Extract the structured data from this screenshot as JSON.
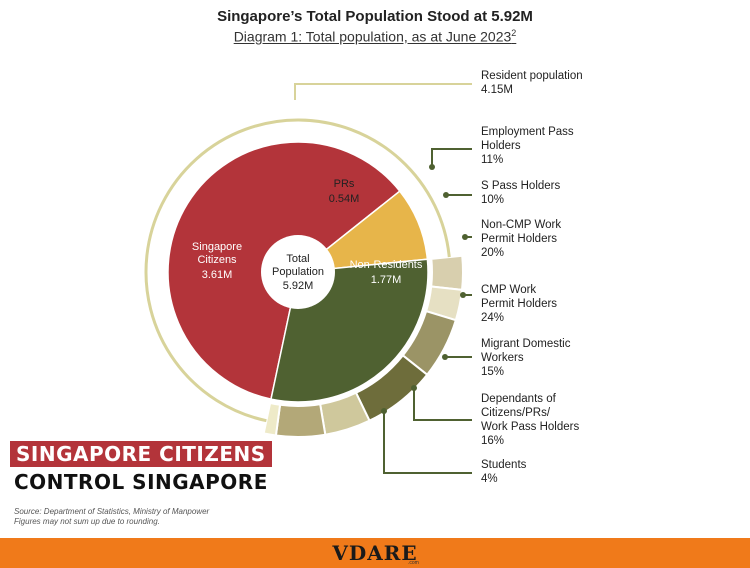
{
  "header": {
    "title": "Singapore’s Total Population Stood at 5.92M",
    "subtitle": "Diagram 1: Total population, as at June 2023",
    "subtitle_footnote": "2"
  },
  "chart_data": {
    "type": "pie",
    "title": "Singapore’s Total Population Stood at 5.92M",
    "subtitle": "Diagram 1: Total population, as at June 2023",
    "center": {
      "label_line1": "Total",
      "label_line2": "Population",
      "value_label": "5.92M",
      "value": 5.92
    },
    "slices": [
      {
        "name_lines": [
          "Singapore",
          "Citizens"
        ],
        "value_label": "3.61M",
        "value": 3.61,
        "color": "#b3343a"
      },
      {
        "name_lines": [
          "PRs"
        ],
        "value_label": "0.54M",
        "value": 0.54,
        "color": "#e7b54a"
      },
      {
        "name_lines": [
          "Non-Residents"
        ],
        "value_label": "1.77M",
        "value": 1.77,
        "color": "#4f6131"
      }
    ],
    "resident_ring": {
      "name": "Resident population",
      "value_label": "4.15M",
      "value": 4.15,
      "color": "#d8d39a"
    },
    "non_resident_breakdown": [
      {
        "name": "Employment Pass Holders",
        "value_label": "11%",
        "value": 11,
        "color": "#d8cfae"
      },
      {
        "name": "S Pass Holders",
        "value_label": "10%",
        "value": 10,
        "color": "#e6e0c3"
      },
      {
        "name": "Non-CMP Work Permit Holders",
        "value_label": "20%",
        "value": 20,
        "color": "#9b9466"
      },
      {
        "name": "CMP Work Permit Holders",
        "value_label": "24%",
        "value": 24,
        "color": "#6e6d3b"
      },
      {
        "name": "Migrant Domestic Workers",
        "value_label": "15%",
        "value": 15,
        "color": "#cfc89c"
      },
      {
        "name": "Dependants of Citizens/PRs/ Work Pass Holders",
        "value_label": "16%",
        "value": 16,
        "color": "#b3a878"
      },
      {
        "name": "Students",
        "value_label": "4%",
        "value": 4,
        "color": "#eeeac8"
      }
    ],
    "callouts": [
      {
        "lines": [
          "Resident population"
        ],
        "value_label": "4.15M"
      },
      {
        "lines": [
          "Employment Pass",
          "Holders"
        ],
        "value_label": "11%"
      },
      {
        "lines": [
          "S Pass Holders"
        ],
        "value_label": "10%"
      },
      {
        "lines": [
          "Non-CMP Work",
          "Permit Holders"
        ],
        "value_label": "20%"
      },
      {
        "lines": [
          "CMP Work",
          "Permit Holders"
        ],
        "value_label": "24%"
      },
      {
        "lines": [
          "Migrant Domestic",
          "Workers"
        ],
        "value_label": "15%"
      },
      {
        "lines": [
          "Dependants of",
          "Citizens/PRs/",
          "Work Pass Holders"
        ],
        "value_label": "16%"
      },
      {
        "lines": [
          "Students"
        ],
        "value_label": "4%"
      }
    ],
    "line_color": "#4f6131",
    "ring_line_color": "#d8d39a"
  },
  "banner": {
    "line1": "SINGAPORE CITIZENS",
    "line2": "CONTROL SINGAPORE"
  },
  "source": {
    "line1": "Source: Department of Statistics, Ministry of Manpower",
    "line2": "Figures may not sum up due to rounding."
  },
  "footer": {
    "logo": "VDARE",
    "logo_sub": ".com"
  }
}
